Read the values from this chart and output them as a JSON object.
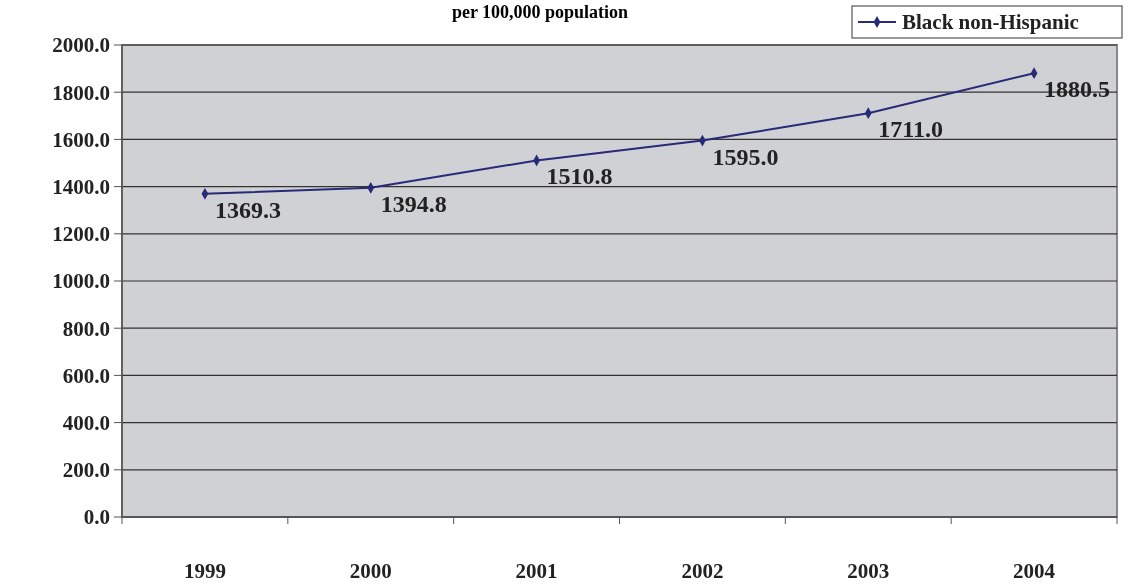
{
  "chart_data": {
    "type": "line",
    "title": "per 100,000 population",
    "categories": [
      "1999",
      "2000",
      "2001",
      "2002",
      "2003",
      "2004"
    ],
    "series": [
      {
        "name": "Black non-Hispanic",
        "color": "#262a78",
        "values": [
          1369.3,
          1394.8,
          1510.8,
          1595.0,
          1711.0,
          1880.5
        ],
        "value_labels": [
          "1369.3",
          "1394.8",
          "1510.8",
          "1595.0",
          "1711.0",
          "1880.5"
        ]
      }
    ],
    "ylim": [
      0,
      2000
    ],
    "yticks": [
      {
        "value": 0,
        "label": "0.0"
      },
      {
        "value": 200,
        "label": "200.0"
      },
      {
        "value": 400,
        "label": "400.0"
      },
      {
        "value": 600,
        "label": "600.0"
      },
      {
        "value": 800,
        "label": "800.0"
      },
      {
        "value": 1000,
        "label": "1000.0"
      },
      {
        "value": 1200,
        "label": "1200.0"
      },
      {
        "value": 1400,
        "label": "1400.0"
      },
      {
        "value": 1600,
        "label": "1600.0"
      },
      {
        "value": 1800,
        "label": "1800.0"
      },
      {
        "value": 2000,
        "label": "2000.0"
      }
    ],
    "grid": "y",
    "legend": "top right",
    "marker": "diamond"
  }
}
